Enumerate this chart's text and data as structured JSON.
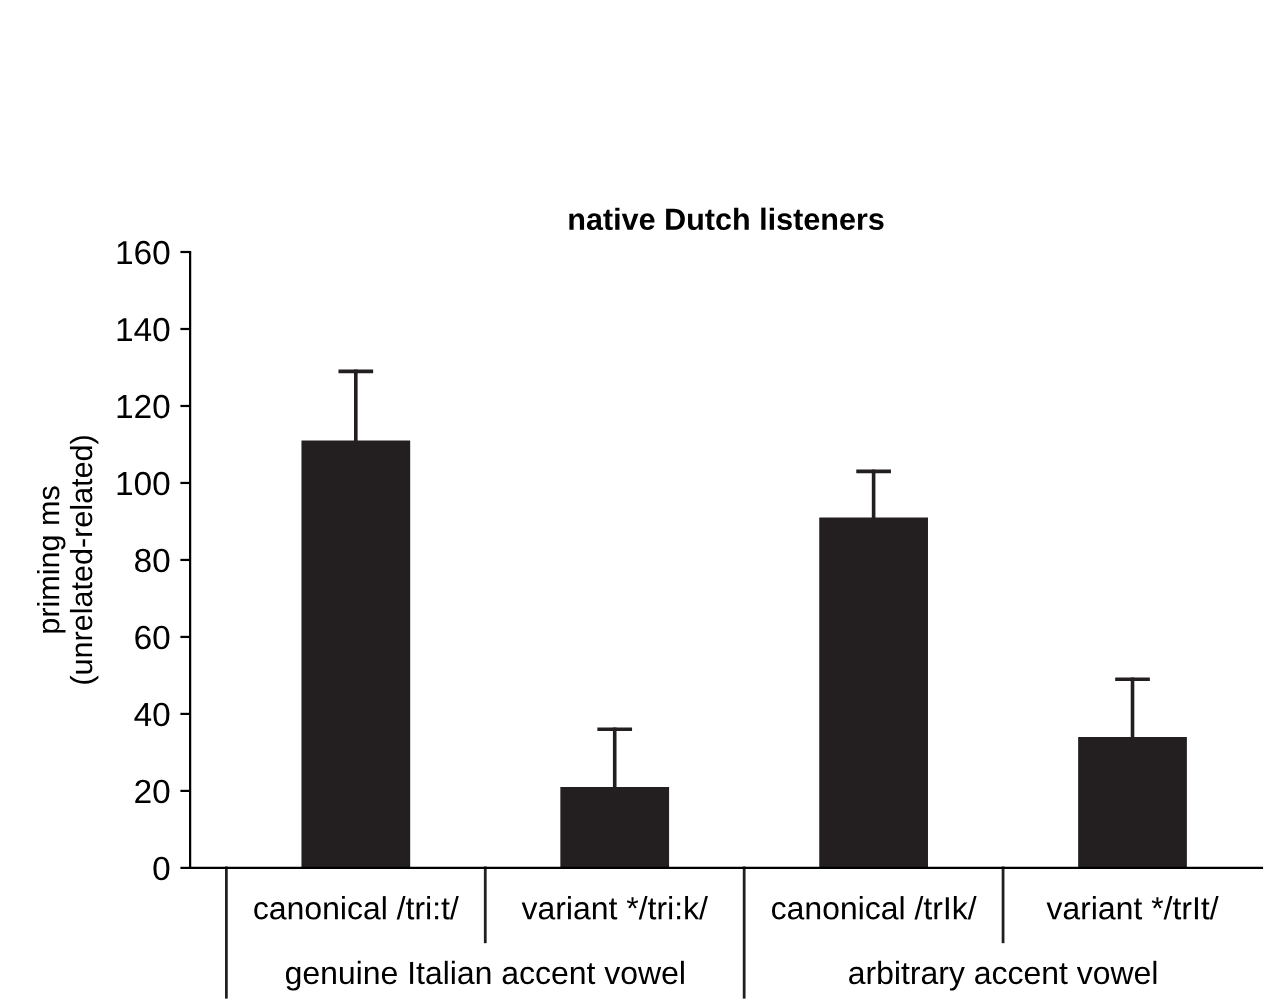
{
  "chart_data": {
    "type": "bar",
    "title": "native Dutch listeners",
    "ylabel": "priming ms\n(unrelated-related)",
    "categories": [
      "canonical /tri:t/",
      "variant */tri:k/",
      "canonical /trIk/",
      "variant */trIt/"
    ],
    "values": [
      111,
      21,
      91,
      34
    ],
    "color": "#231f20",
    "errors": [
      [
        111,
        129
      ],
      [
        21,
        36
      ],
      [
        91,
        103
      ],
      [
        34,
        49
      ]
    ],
    "ylim": [
      0,
      160
    ],
    "yticks": [
      0,
      20,
      40,
      60,
      80,
      100,
      120,
      140,
      160
    ],
    "grid": false,
    "annotations": [
      "genuine Italian accent vowel",
      "arbitrary accent vowel"
    ]
  }
}
